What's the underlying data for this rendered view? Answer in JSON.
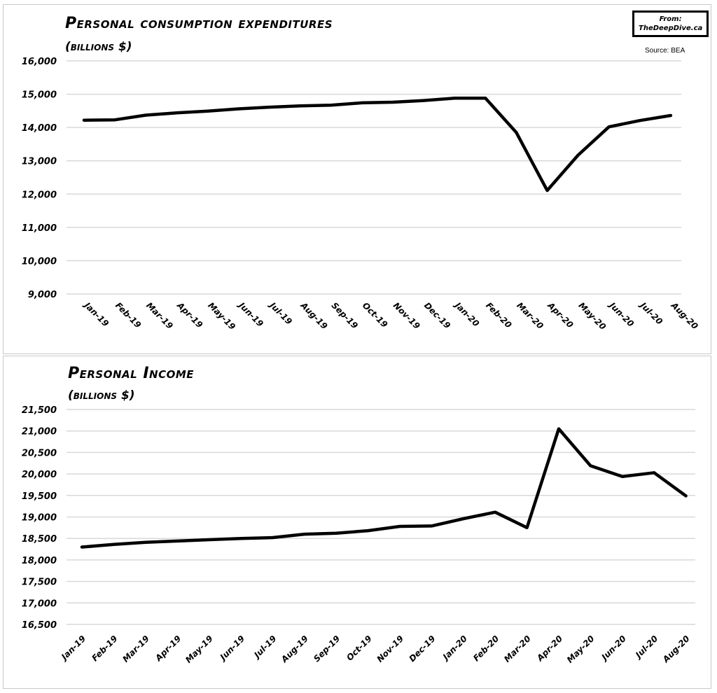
{
  "credit": {
    "line1": "From:",
    "line2": "TheDeepDive.ca"
  },
  "source": "Source: BEA",
  "chart_data": [
    {
      "type": "line",
      "title": "Personal consumption expenditures",
      "subtitle": "(billions $)",
      "ylim": [
        9000,
        16000
      ],
      "yticks": [
        9000,
        10000,
        11000,
        12000,
        13000,
        14000,
        15000,
        16000
      ],
      "ytick_labels": [
        "9,000",
        "10,000",
        "11,000",
        "12,000",
        "13,000",
        "14,000",
        "15,000",
        "16,000"
      ],
      "grid": true,
      "categories": [
        "Jan-19",
        "Feb-19",
        "Mar-19",
        "Apr-19",
        "May-19",
        "Jun-19",
        "Jul-19",
        "Aug-19",
        "Sep-19",
        "Oct-19",
        "Nov-19",
        "Dec-19",
        "Jan-20",
        "Feb-20",
        "Mar-20",
        "Apr-20",
        "May-20",
        "Jun-20",
        "Jul-20",
        "Aug-20"
      ],
      "values": [
        14220,
        14230,
        14370,
        14440,
        14490,
        14560,
        14610,
        14650,
        14670,
        14740,
        14760,
        14810,
        14880,
        14880,
        13850,
        12110,
        13170,
        14020,
        14210,
        14360
      ]
    },
    {
      "type": "line",
      "title": "Personal Income",
      "subtitle": "(billions $)",
      "ylim": [
        16500,
        21500
      ],
      "yticks": [
        16500,
        17000,
        17500,
        18000,
        18500,
        19000,
        19500,
        20000,
        20500,
        21000,
        21500
      ],
      "ytick_labels": [
        "16,500",
        "17,000",
        "17,500",
        "18,000",
        "18,500",
        "19,000",
        "19,500",
        "20,000",
        "20,500",
        "21,000",
        "21,500"
      ],
      "grid": true,
      "categories": [
        "Jan-19",
        "Feb-19",
        "Mar-19",
        "Apr-19",
        "May-19",
        "Jun-19",
        "Jul-19",
        "Aug-19",
        "Sep-19",
        "Oct-19",
        "Nov-19",
        "Dec-19",
        "Jan-20",
        "Feb-20",
        "Mar-20",
        "Apr-20",
        "May-20",
        "Jun-20",
        "Jul-20",
        "Aug-20"
      ],
      "values": [
        18300,
        18360,
        18410,
        18440,
        18470,
        18500,
        18520,
        18600,
        18620,
        18680,
        18780,
        18790,
        18960,
        19110,
        18750,
        21050,
        20190,
        19940,
        20030,
        19490
      ]
    }
  ]
}
